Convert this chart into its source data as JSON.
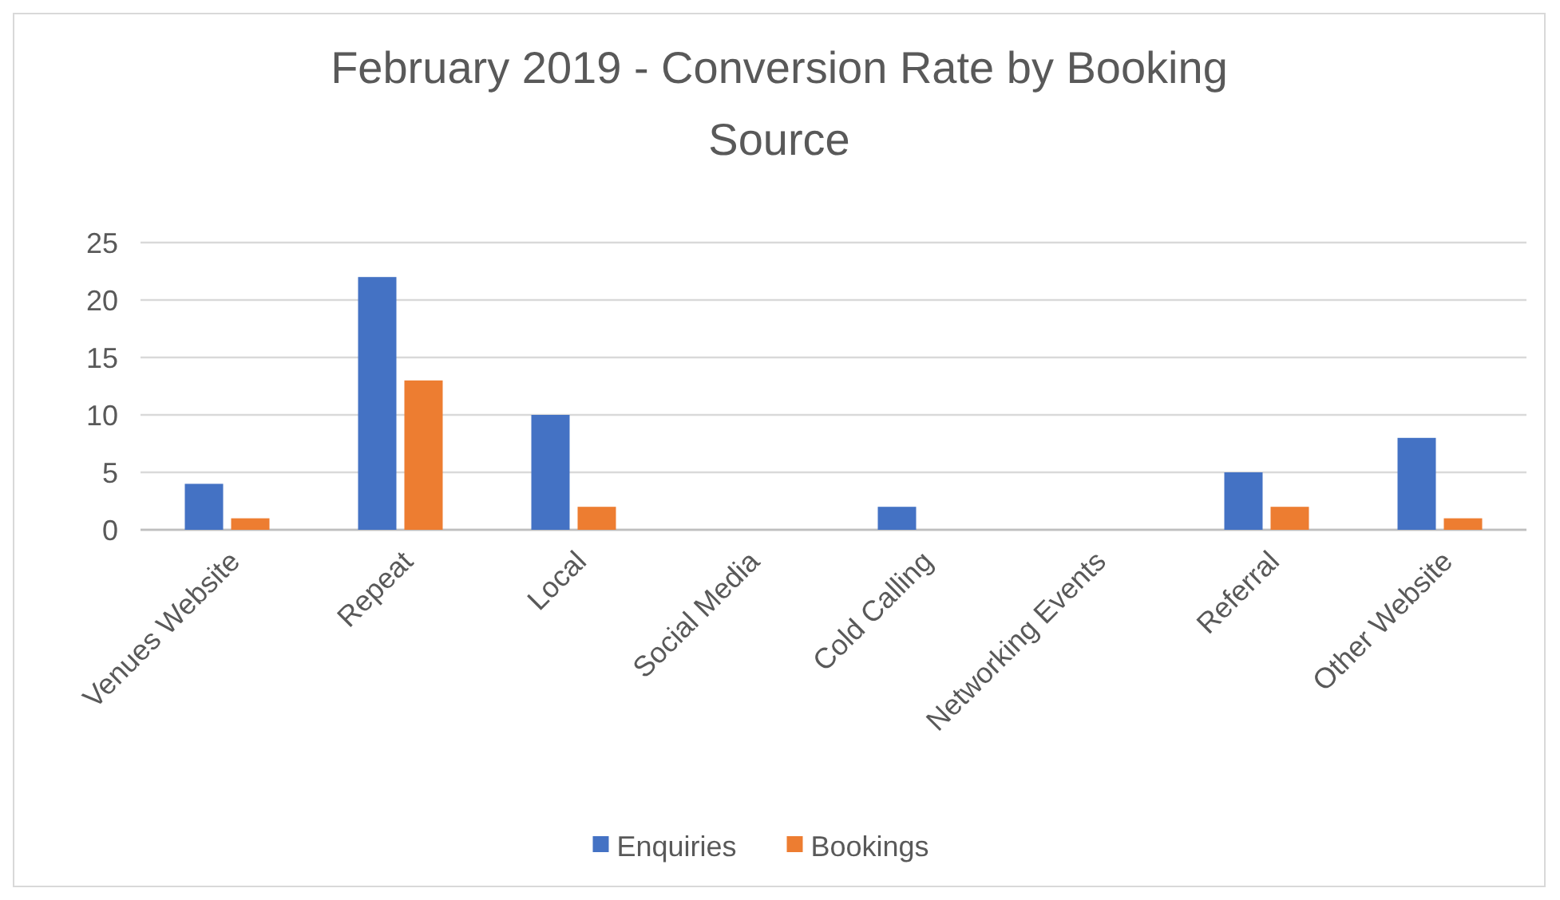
{
  "chart_data": {
    "type": "bar",
    "title": "February 2019 - Conversion Rate by Booking Source",
    "categories": [
      "Venues Website",
      "Repeat",
      "Local",
      "Social Media",
      "Cold Calling",
      "Networking Events",
      "Referral",
      "Other Website"
    ],
    "series": [
      {
        "name": "Enquiries",
        "color": "#4472c4",
        "values": [
          4,
          22,
          10,
          0,
          2,
          0,
          5,
          8
        ]
      },
      {
        "name": "Bookings",
        "color": "#ed7d31",
        "values": [
          1,
          13,
          2,
          0,
          0,
          0,
          2,
          1
        ]
      }
    ],
    "ylim": [
      0,
      25
    ],
    "yticks": [
      0,
      5,
      10,
      15,
      20,
      25
    ],
    "grid": "y",
    "legend": "bottom"
  }
}
